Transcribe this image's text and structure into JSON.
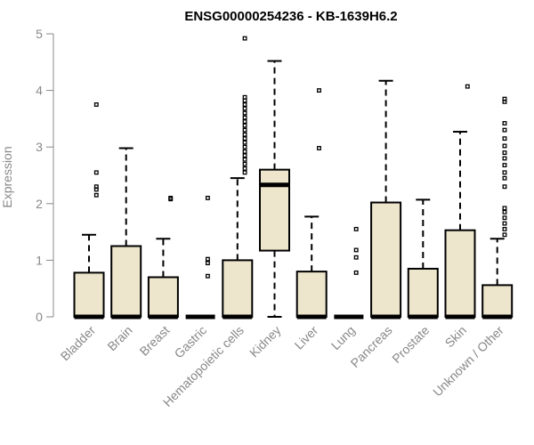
{
  "chart_data": {
    "type": "boxplot",
    "title": "ENSG00000254236 - KB-1639H6.2",
    "ylabel": "Expression",
    "xlabel": "",
    "ylim": [
      0,
      5
    ],
    "yticks": [
      0,
      1,
      2,
      3,
      4,
      5
    ],
    "grid": false,
    "legend": "none",
    "box_fill": "#ede6cc",
    "categories": [
      "Bladder",
      "Brain",
      "Breast",
      "Gastric",
      "Hematopoietic cells",
      "Kidney",
      "Liver",
      "Lung",
      "Pancreas",
      "Prostate",
      "Skin",
      "Unknown / Other"
    ],
    "boxes": [
      {
        "min": 0,
        "q1": 0,
        "median": 0,
        "q3": 0.78,
        "max": 1.45,
        "outliers": [
          2.15,
          2.25,
          2.3,
          2.55,
          3.75
        ]
      },
      {
        "min": 0,
        "q1": 0,
        "median": 0,
        "q3": 1.25,
        "max": 2.98,
        "outliers": []
      },
      {
        "min": 0,
        "q1": 0,
        "median": 0,
        "q3": 0.7,
        "max": 1.38,
        "outliers": [
          2.08,
          2.1
        ]
      },
      {
        "min": 0,
        "q1": 0,
        "median": 0,
        "q3": 0,
        "max": 0,
        "outliers": [
          0.72,
          0.95,
          1.02,
          2.1
        ]
      },
      {
        "min": 0,
        "q1": 0,
        "median": 0,
        "q3": 1.0,
        "max": 2.45,
        "outliers": [
          2.55,
          2.62,
          2.7,
          2.78,
          2.85,
          2.92,
          3.0,
          3.08,
          3.15,
          3.22,
          3.3,
          3.38,
          3.45,
          3.52,
          3.6,
          3.68,
          3.75,
          3.82,
          3.88,
          4.92
        ]
      },
      {
        "min": 0,
        "q1": 1.17,
        "median": 2.33,
        "q3": 2.6,
        "max": 4.52,
        "outliers": []
      },
      {
        "min": 0,
        "q1": 0,
        "median": 0,
        "q3": 0.8,
        "max": 1.77,
        "outliers": [
          2.98,
          4.0
        ]
      },
      {
        "min": 0,
        "q1": 0,
        "median": 0,
        "q3": 0,
        "max": 0,
        "outliers": [
          0.78,
          1.05,
          1.18,
          1.55
        ]
      },
      {
        "min": 0,
        "q1": 0,
        "median": 0,
        "q3": 2.02,
        "max": 4.17,
        "outliers": []
      },
      {
        "min": 0,
        "q1": 0,
        "median": 0,
        "q3": 0.85,
        "max": 2.07,
        "outliers": []
      },
      {
        "min": 0,
        "q1": 0,
        "median": 0,
        "q3": 1.53,
        "max": 3.27,
        "outliers": [
          4.07
        ]
      },
      {
        "min": 0,
        "q1": 0,
        "median": 0,
        "q3": 0.56,
        "max": 1.38,
        "outliers": [
          1.45,
          1.55,
          1.65,
          1.75,
          1.85,
          1.92,
          2.3,
          2.45,
          2.55,
          2.68,
          2.8,
          2.9,
          3.02,
          3.15,
          3.3,
          3.42,
          3.8,
          3.85
        ]
      }
    ]
  }
}
